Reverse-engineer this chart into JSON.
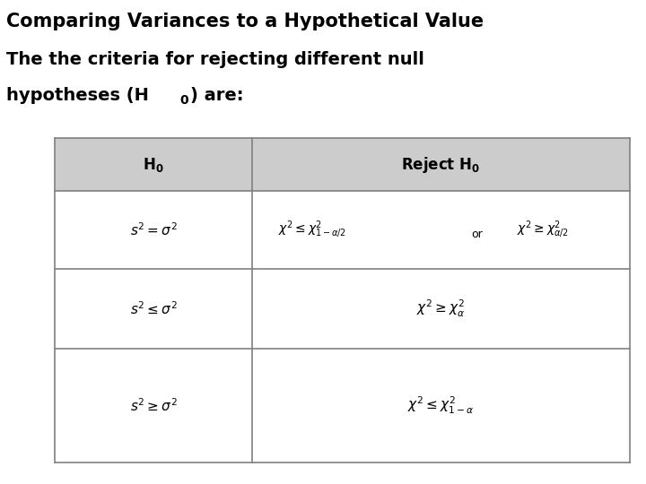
{
  "title": "Comparing Variances to a Hypothetical Value",
  "subtitle_line1": "The the criteria for rejecting different null",
  "subtitle_line2a": "hypotheses (H",
  "subtitle_line2b": ") are:",
  "bg_color": "#ffffff",
  "table_bg": "#ffffff",
  "header_bg": "#cccccc",
  "border_color": "#808080",
  "title_fontsize": 15,
  "subtitle_fontsize": 14,
  "col1_header": "$\\mathbf{H_0}$",
  "col2_header": "$\\mathbf{Reject\\ H_0}$",
  "row1_col1": "$s^2 = \\sigma^2$",
  "row1_col2_part1": "$\\chi^2 \\leq \\chi^2_{1-\\alpha/2}$",
  "row1_col2_or": "or",
  "row1_col2_part2": "$\\chi^2 \\geq \\chi^2_{\\alpha/2}$",
  "row2_col1": "$s^2 \\leq \\sigma^2$",
  "row2_col2": "$\\chi^2 \\geq \\chi^2_{\\alpha}$",
  "row3_col1": "$s^2 \\geq \\sigma^2$",
  "row3_col2": "$\\chi^2 \\leq \\chi^2_{1-\\alpha}$",
  "tl": 0.085,
  "tr": 0.975,
  "tt": 0.715,
  "tb": 0.045,
  "col_split": 0.39,
  "row_tops": [
    0.715,
    0.605,
    0.445,
    0.28,
    0.045
  ]
}
